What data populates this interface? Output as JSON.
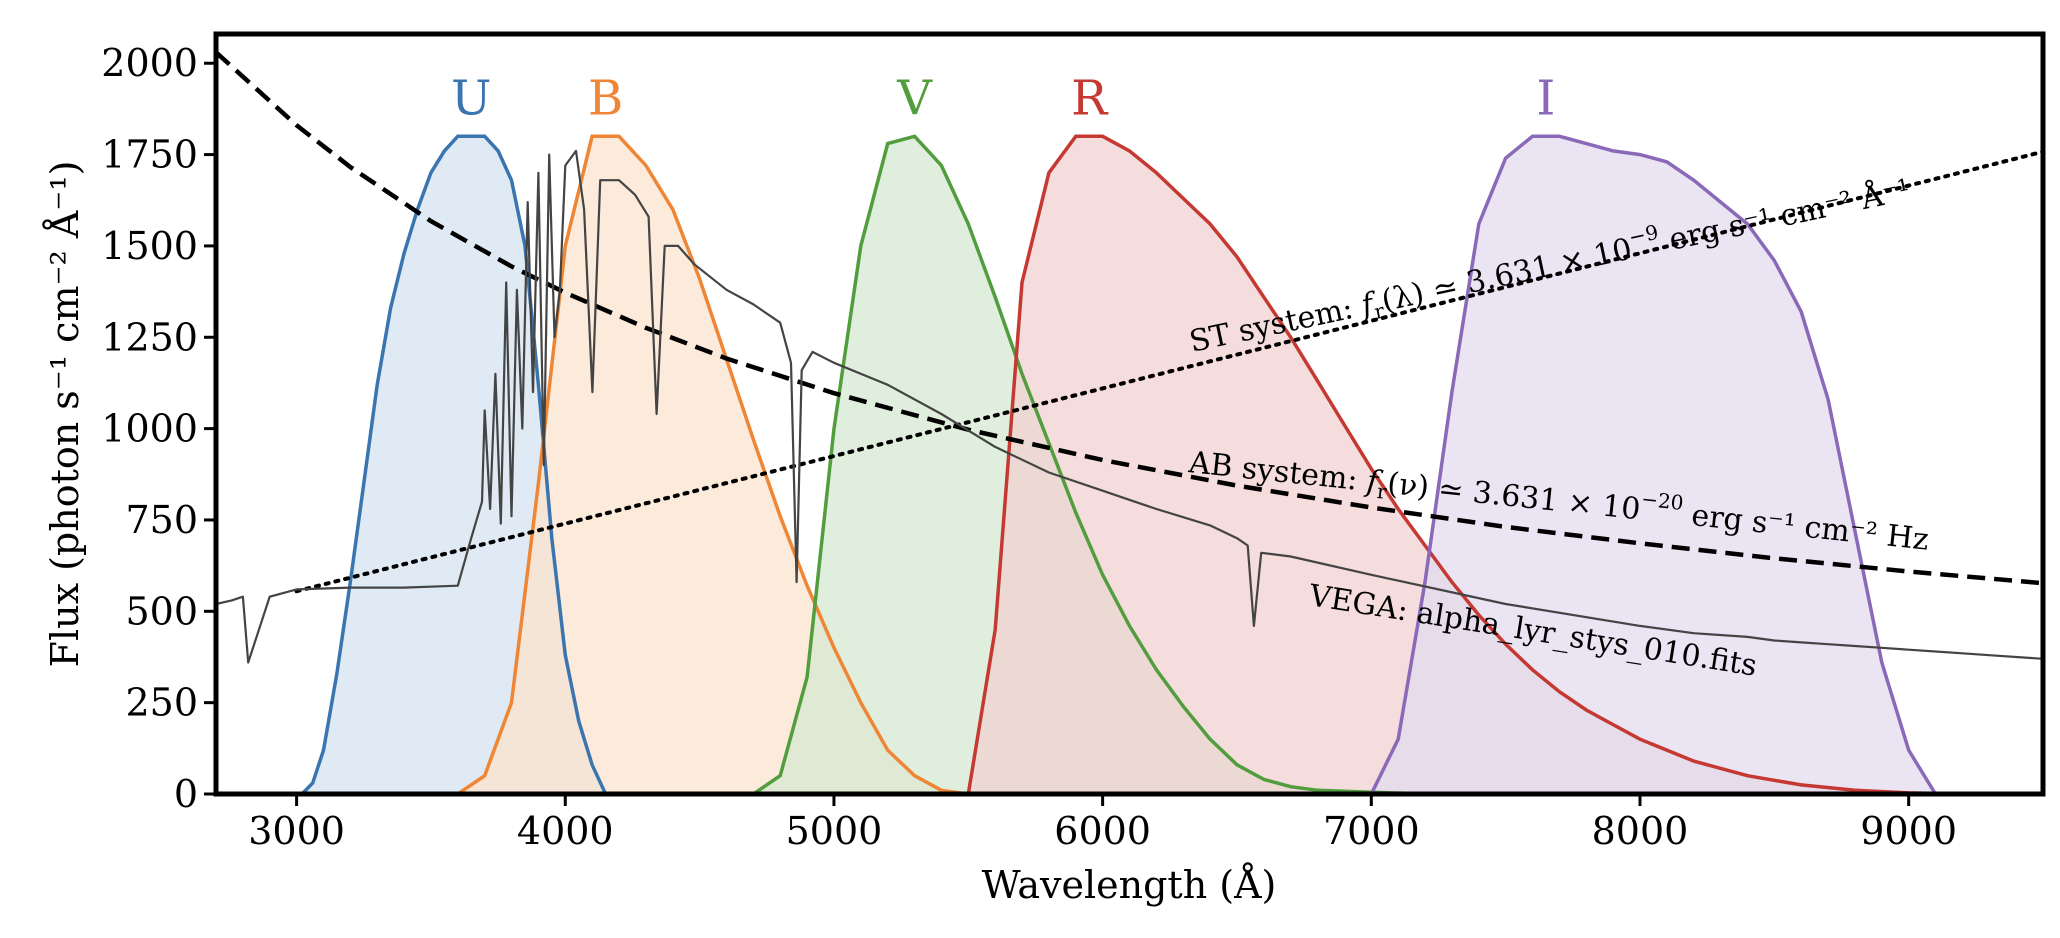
{
  "chart_data": {
    "type": "area",
    "xlabel": "Wavelength  (Å)",
    "ylabel": "Flux  (photon s⁻¹ cm⁻² Å⁻¹)",
    "xlim": [
      2700,
      9500
    ],
    "ylim": [
      0,
      2080
    ],
    "xticks": [
      3000,
      4000,
      5000,
      6000,
      7000,
      8000,
      9000
    ],
    "yticks": [
      0,
      250,
      500,
      750,
      1000,
      1250,
      1500,
      1750,
      2000
    ],
    "grid": false,
    "bands": [
      {
        "name": "U",
        "color": "#3a75b0",
        "fill": "#d4e3f0",
        "x": [
          3020,
          3060,
          3100,
          3150,
          3200,
          3250,
          3300,
          3350,
          3400,
          3450,
          3500,
          3550,
          3600,
          3650,
          3700,
          3750,
          3800,
          3850,
          3900,
          3950,
          4000,
          4050,
          4100,
          4150
        ],
        "y": [
          0,
          30,
          120,
          330,
          580,
          850,
          1120,
          1330,
          1480,
          1600,
          1700,
          1760,
          1800,
          1800,
          1800,
          1760,
          1680,
          1500,
          1120,
          700,
          380,
          200,
          80,
          0
        ]
      },
      {
        "name": "B",
        "color": "#ef8636",
        "fill": "#fbe3ce",
        "x": [
          3600,
          3700,
          3800,
          3900,
          4000,
          4100,
          4200,
          4300,
          4400,
          4500,
          4600,
          4700,
          4800,
          4900,
          5000,
          5100,
          5200,
          5300,
          5400,
          5500
        ],
        "y": [
          0,
          50,
          250,
          850,
          1500,
          1800,
          1800,
          1720,
          1600,
          1410,
          1190,
          970,
          760,
          570,
          400,
          250,
          120,
          50,
          10,
          0
        ]
      },
      {
        "name": "V",
        "color": "#529d3e",
        "fill": "#d6e8d2",
        "x": [
          4700,
          4800,
          4900,
          5000,
          5100,
          5200,
          5300,
          5400,
          5500,
          5600,
          5700,
          5800,
          5900,
          6000,
          6100,
          6200,
          6300,
          6400,
          6500,
          6600,
          6700,
          6800,
          7000,
          7200
        ],
        "y": [
          0,
          50,
          320,
          1000,
          1500,
          1780,
          1800,
          1720,
          1560,
          1360,
          1150,
          960,
          770,
          600,
          460,
          340,
          240,
          150,
          80,
          40,
          20,
          10,
          5,
          0
        ]
      },
      {
        "name": "R",
        "color": "#c53932",
        "fill": "#f0d1d0",
        "x": [
          5500,
          5600,
          5700,
          5800,
          5900,
          6000,
          6100,
          6200,
          6300,
          6400,
          6500,
          6600,
          6700,
          6800,
          6900,
          7000,
          7100,
          7200,
          7300,
          7400,
          7500,
          7600,
          7700,
          7800,
          7900,
          8000,
          8200,
          8400,
          8600,
          8800,
          9000,
          9200
        ],
        "y": [
          0,
          450,
          1400,
          1700,
          1800,
          1800,
          1760,
          1700,
          1630,
          1560,
          1470,
          1360,
          1250,
          1130,
          1010,
          890,
          780,
          680,
          580,
          490,
          410,
          340,
          280,
          230,
          190,
          150,
          90,
          50,
          25,
          10,
          3,
          0
        ]
      },
      {
        "name": "I",
        "color": "#8a69b8",
        "fill": "#e3dbef",
        "x": [
          7000,
          7100,
          7200,
          7300,
          7400,
          7500,
          7600,
          7700,
          7800,
          7900,
          8000,
          8100,
          8200,
          8300,
          8400,
          8500,
          8600,
          8700,
          8800,
          8900,
          9000,
          9100
        ],
        "y": [
          0,
          150,
          580,
          1100,
          1560,
          1740,
          1800,
          1800,
          1780,
          1760,
          1750,
          1730,
          1680,
          1620,
          1560,
          1460,
          1320,
          1080,
          720,
          360,
          120,
          0
        ]
      }
    ],
    "lines": [
      {
        "name": "ST",
        "style": "dotted",
        "color": "#000000",
        "x": [
          3000,
          4000,
          5000,
          6000,
          7000,
          8000,
          9000,
          9500
        ],
        "y": [
          555,
          740,
          925,
          1110,
          1295,
          1480,
          1665,
          1758
        ]
      },
      {
        "name": "AB",
        "style": "dashed",
        "color": "#000000",
        "x": [
          2700,
          3000,
          3200,
          3500,
          3800,
          4000,
          4300,
          4600,
          5000,
          5500,
          6000,
          6500,
          7000,
          7500,
          8000,
          8500,
          9000,
          9500
        ],
        "y": [
          2030,
          1830,
          1716,
          1568,
          1444,
          1372,
          1276,
          1192,
          1097,
          997,
          914,
          844,
          784,
          731,
          686,
          645,
          609,
          577
        ]
      },
      {
        "name": "VEGA",
        "style": "solid",
        "color": "#444444",
        "x": [
          2700,
          2760,
          2800,
          2820,
          2900,
          3000,
          3200,
          3400,
          3600,
          3650,
          3690,
          3700,
          3720,
          3740,
          3760,
          3780,
          3800,
          3820,
          3840,
          3860,
          3880,
          3900,
          3920,
          3940,
          3960,
          3980,
          4000,
          4040,
          4070,
          4101,
          4130,
          4200,
          4260,
          4310,
          4340,
          4370,
          4420,
          4480,
          4600,
          4700,
          4800,
          4840,
          4861,
          4880,
          4920,
          5000,
          5200,
          5400,
          5600,
          5800,
          6000,
          6200,
          6400,
          6500,
          6540,
          6563,
          6590,
          6700,
          7000,
          7500,
          8000,
          8200,
          8400,
          8500,
          8600,
          8700,
          8800,
          8900,
          9000,
          9100,
          9200,
          9300,
          9400,
          9500
        ],
        "y": [
          520,
          530,
          540,
          360,
          540,
          560,
          565,
          565,
          570,
          700,
          800,
          1050,
          780,
          1150,
          740,
          1400,
          760,
          1380,
          1000,
          1620,
          1100,
          1700,
          900,
          1750,
          1250,
          1380,
          1720,
          1760,
          1600,
          1100,
          1680,
          1680,
          1640,
          1580,
          1040,
          1500,
          1500,
          1450,
          1380,
          1340,
          1290,
          1180,
          580,
          1160,
          1210,
          1180,
          1120,
          1040,
          950,
          880,
          830,
          780,
          735,
          700,
          680,
          460,
          660,
          650,
          600,
          520,
          460,
          440,
          430,
          420,
          415,
          410,
          405,
          400,
          395,
          390,
          385,
          380,
          375,
          370
        ]
      }
    ],
    "annotations": [
      {
        "text_pre": "ST system: ",
        "text_f": "f",
        "text_sub": "r",
        "text_mid": "(λ) ≃ 3.631 × 10",
        "text_exp": "−9",
        "text_post": " erg s⁻¹ cm⁻² Å⁻¹"
      },
      {
        "text_pre": "AB system: ",
        "text_f": "f",
        "text_sub": "r",
        "text_mid": "(ν) ≃ 3.631 × 10",
        "text_exp": "−20",
        "text_post": " erg s⁻¹ cm⁻² Hz"
      },
      {
        "text": "VEGA: alpha_lyr_stys_010.fits"
      }
    ]
  }
}
